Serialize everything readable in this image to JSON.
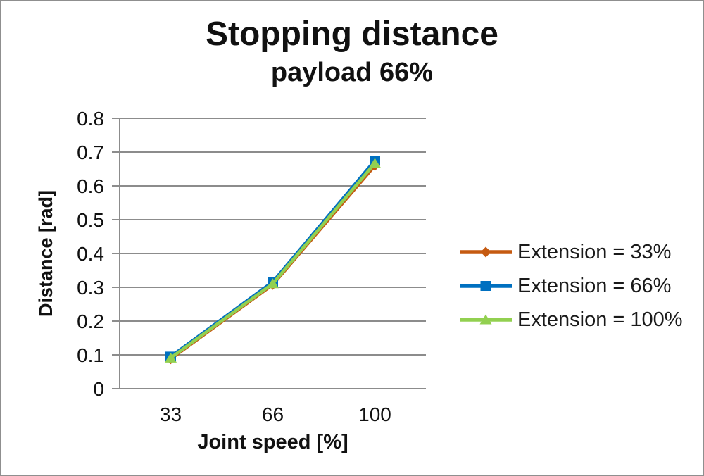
{
  "chart_data": {
    "type": "line",
    "title": "Stopping distance",
    "subtitle": "payload 66%",
    "xlabel": "Joint speed [%]",
    "ylabel": "Distance [rad]",
    "categories": [
      "33",
      "66",
      "100"
    ],
    "series": [
      {
        "name": "Extension = 33%",
        "marker": "diamond",
        "color": "#C55A11",
        "values": [
          0.088,
          0.308,
          0.66
        ]
      },
      {
        "name": "Extension = 66%",
        "marker": "square",
        "color": "#0070C0",
        "values": [
          0.095,
          0.316,
          0.675
        ]
      },
      {
        "name": "Extension = 100%",
        "marker": "triangle",
        "color": "#92D050",
        "values": [
          0.091,
          0.311,
          0.667
        ]
      }
    ],
    "ylim": [
      0,
      0.8
    ],
    "y_tick_step": 0.1,
    "y_tick_labels": [
      "0",
      "0.1",
      "0.2",
      "0.3",
      "0.4",
      "0.5",
      "0.6",
      "0.7",
      "0.8"
    ],
    "grid": true,
    "legend_position": "right",
    "colors": {
      "gridline": "#8c8c8c",
      "axis": "#8c8c8c",
      "text": "#111111",
      "background": "#ffffff",
      "frame_border": "#8f8f8f"
    }
  }
}
